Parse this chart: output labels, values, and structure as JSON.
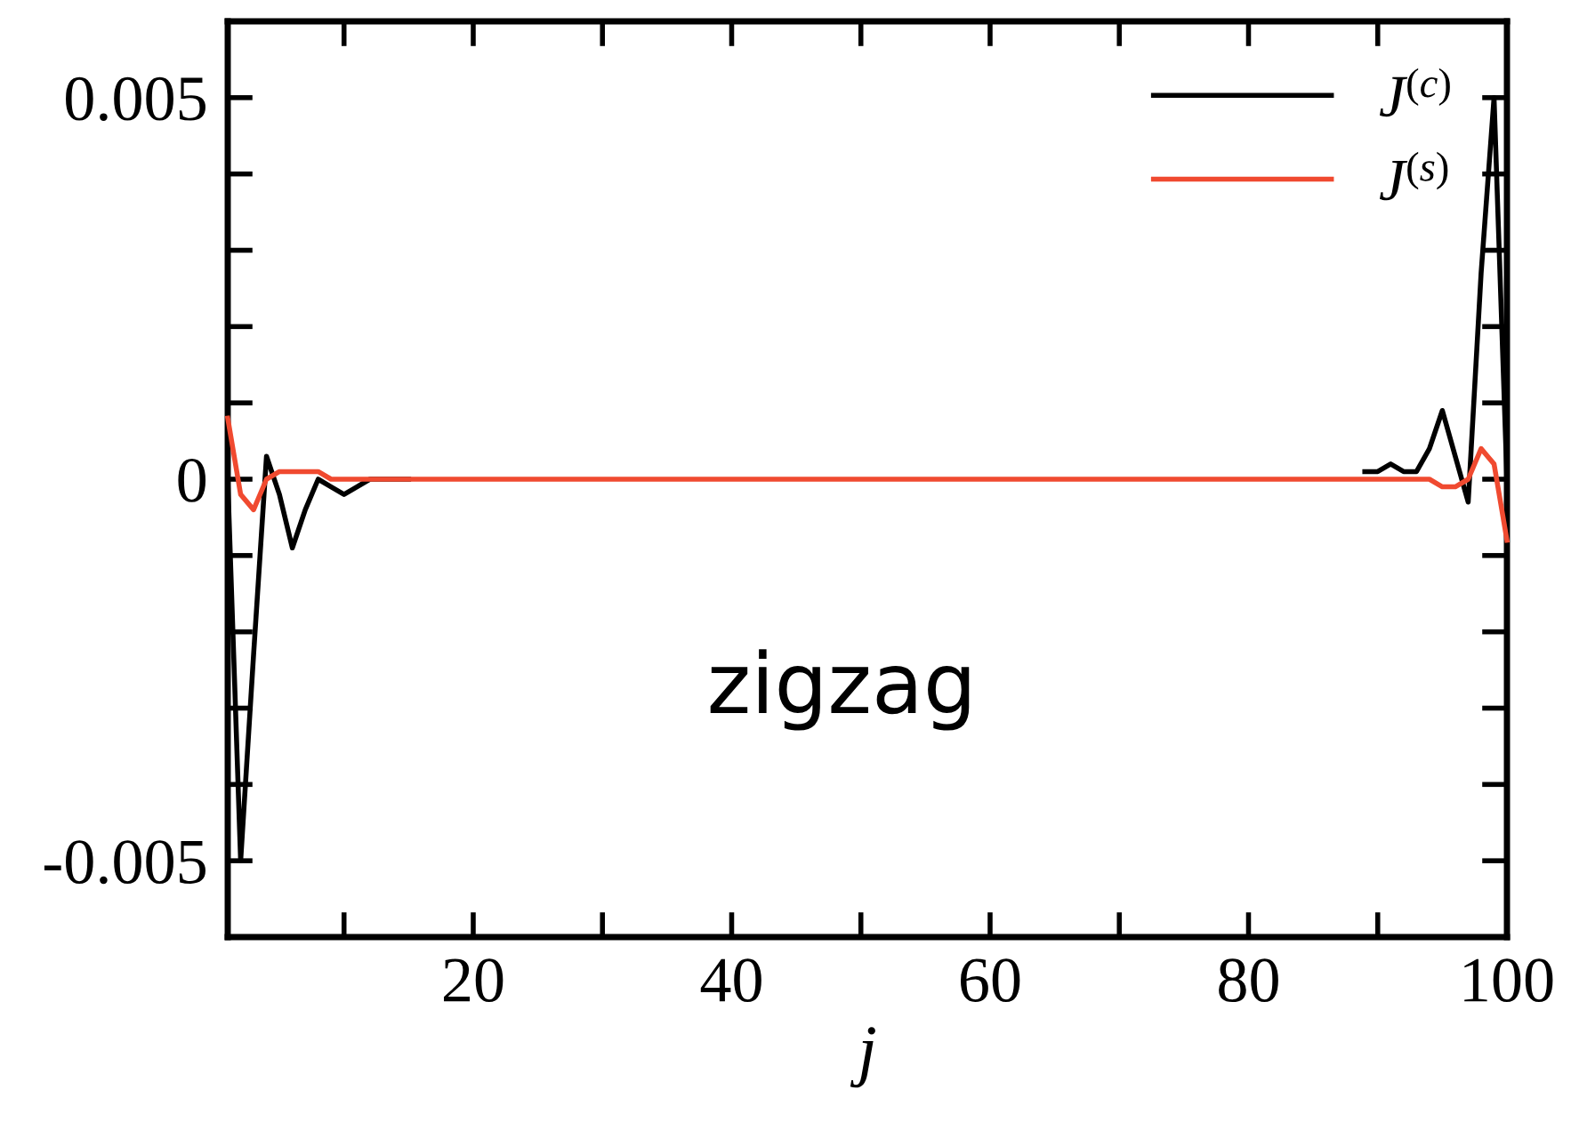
{
  "chart_data": {
    "type": "line",
    "xlabel": "j",
    "x": [
      1,
      2,
      3,
      4,
      5,
      6,
      7,
      8,
      9,
      10,
      11,
      12,
      13,
      14,
      15,
      16,
      17,
      18,
      19,
      20,
      21,
      22,
      23,
      24,
      25,
      26,
      27,
      28,
      29,
      30,
      31,
      32,
      33,
      34,
      35,
      36,
      37,
      38,
      39,
      40,
      41,
      42,
      43,
      44,
      45,
      46,
      47,
      48,
      49,
      50,
      51,
      52,
      53,
      54,
      55,
      56,
      57,
      58,
      59,
      60,
      61,
      62,
      63,
      64,
      65,
      66,
      67,
      68,
      69,
      70,
      71,
      72,
      73,
      74,
      75,
      76,
      77,
      78,
      79,
      80,
      81,
      82,
      83,
      84,
      85,
      86,
      87,
      88,
      89,
      90,
      91,
      92,
      93,
      94,
      95,
      96,
      97,
      98,
      99,
      100
    ],
    "series": [
      {
        "name": "J$^{(c)}$",
        "color": "#000000",
        "values": [
          0,
          -0.005,
          -0.0023,
          0.0003,
          -0.0002,
          -0.0009,
          -0.0004,
          0,
          -0.0001,
          -0.0002,
          -0.0001,
          0,
          0,
          0,
          0,
          null,
          null,
          null,
          null,
          null,
          null,
          null,
          null,
          null,
          null,
          null,
          null,
          null,
          null,
          null,
          null,
          null,
          null,
          null,
          null,
          null,
          null,
          null,
          null,
          null,
          null,
          null,
          null,
          null,
          null,
          null,
          null,
          null,
          null,
          null,
          null,
          null,
          null,
          null,
          null,
          null,
          null,
          null,
          null,
          null,
          null,
          null,
          null,
          null,
          null,
          null,
          null,
          null,
          null,
          null,
          null,
          null,
          null,
          null,
          null,
          null,
          null,
          null,
          null,
          null,
          null,
          null,
          null,
          null,
          null,
          null,
          null,
          null,
          0.0001,
          0.0001,
          0.0002,
          0.0001,
          0.0001,
          0.0004,
          0.0009,
          0.0003,
          -0.0003,
          0.0027,
          0.005,
          0
        ]
      },
      {
        "name": "J$^{(s)}$",
        "color": "#f04a30",
        "values": [
          0.0008,
          -0.0002,
          -0.0004,
          0,
          0.0001,
          0.0001,
          0.0001,
          0.0001,
          0,
          0,
          0,
          0,
          0,
          0,
          0,
          0,
          0,
          0,
          0,
          0,
          0,
          0,
          0,
          0,
          0,
          0,
          0,
          0,
          0,
          0,
          0,
          0,
          0,
          0,
          0,
          0,
          0,
          0,
          0,
          0,
          0,
          0,
          0,
          0,
          0,
          0,
          0,
          0,
          0,
          0,
          0,
          0,
          0,
          0,
          0,
          0,
          0,
          0,
          0,
          0,
          0,
          0,
          0,
          0,
          0,
          0,
          0,
          0,
          0,
          0,
          0,
          0,
          0,
          0,
          0,
          0,
          0,
          0,
          0,
          0,
          0,
          0,
          0,
          0,
          0,
          0,
          0,
          0,
          0,
          0,
          0,
          0,
          0,
          0,
          -0.0001,
          -0.0001,
          0,
          0.0004,
          0.0002,
          -0.0008
        ]
      }
    ],
    "xlim": [
      1,
      100
    ],
    "xticks": [
      {
        "value": 10,
        "label": null
      },
      20,
      {
        "value": 30,
        "label": null
      },
      40,
      {
        "value": 50,
        "label": null
      },
      60,
      {
        "value": 70,
        "label": null
      },
      80,
      {
        "value": 90,
        "label": null
      },
      100
    ],
    "ylim": [
      -0.006,
      0.006
    ],
    "yticks": [
      {
        "value": -0.005,
        "label": "-0.005"
      },
      {
        "value": -0.004,
        "label": null
      },
      {
        "value": -0.003,
        "label": null
      },
      {
        "value": -0.002,
        "label": null
      },
      {
        "value": -0.001,
        "label": null
      },
      0,
      {
        "value": 0.001,
        "label": null
      },
      {
        "value": 0.002,
        "label": null
      },
      {
        "value": 0.003,
        "label": null
      },
      {
        "value": 0.004,
        "label": null
      },
      0.005
    ],
    "annotations": [
      "zigzag"
    ],
    "legend": "top right",
    "grid": false,
    "marker": "none",
    "line_style": "solid"
  }
}
